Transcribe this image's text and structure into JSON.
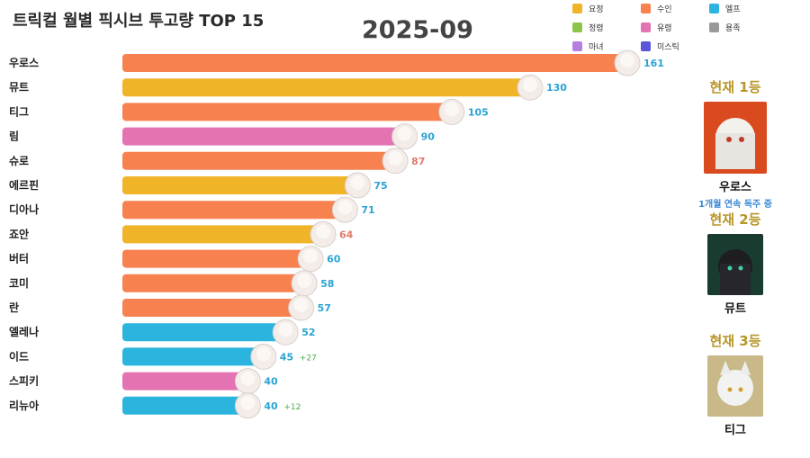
{
  "title": "트릭컬 월별 픽시브 투고량 TOP 15",
  "period": "2025-09",
  "legend": [
    {
      "label": "요정",
      "color": "#f0b429"
    },
    {
      "label": "수인",
      "color": "#f7814f"
    },
    {
      "label": "엘프",
      "color": "#2bb5de"
    },
    {
      "label": "정령",
      "color": "#8cc34b"
    },
    {
      "label": "유령",
      "color": "#e373b3"
    },
    {
      "label": "용족",
      "color": "#999999"
    },
    {
      "label": "마녀",
      "color": "#b57fe0"
    },
    {
      "label": "미스틱",
      "color": "#5c54d9"
    }
  ],
  "chart_data": {
    "type": "bar",
    "orientation": "horizontal",
    "title": "트릭컬 월별 픽시브 투고량 TOP 15",
    "period": "2025-09",
    "xlim": [
      0,
      161
    ],
    "categories": [
      "우로스",
      "뮤트",
      "티그",
      "림",
      "슈로",
      "에르핀",
      "디아나",
      "죠안",
      "버터",
      "코미",
      "란",
      "엘레나",
      "이드",
      "스피키",
      "리뉴아"
    ],
    "values": [
      161,
      130,
      105,
      90,
      87,
      75,
      71,
      64,
      60,
      58,
      57,
      52,
      45,
      40,
      40
    ],
    "groups": [
      "수인",
      "요정",
      "수인",
      "유령",
      "수인",
      "요정",
      "수인",
      "요정",
      "수인",
      "수인",
      "수인",
      "엘프",
      "엘프",
      "유령",
      "엘프"
    ],
    "deltas": [
      "",
      "",
      "",
      "",
      "",
      "",
      "",
      "",
      "",
      "",
      "",
      "",
      "+27",
      "",
      "+12"
    ],
    "value_colors": [
      "#2ba3d4",
      "#2ba3d4",
      "#2ba3d4",
      "#2ba3d4",
      "#e07a6a",
      "#2ba3d4",
      "#2ba3d4",
      "#e07a6a",
      "#2ba3d4",
      "#2ba3d4",
      "#2ba3d4",
      "#2ba3d4",
      "#2ba3d4",
      "#2ba3d4",
      "#2ba3d4"
    ]
  },
  "ranks": [
    {
      "title": "현재 1등",
      "name": "우로스",
      "sub": "1개월 연속 독주 중",
      "bg": "#d94a1f"
    },
    {
      "title": "현재 2등",
      "name": "뮤트",
      "sub": "",
      "bg": "#1a3b30"
    },
    {
      "title": "현재 3등",
      "name": "티그",
      "sub": "",
      "bg": "#c9b989"
    }
  ]
}
